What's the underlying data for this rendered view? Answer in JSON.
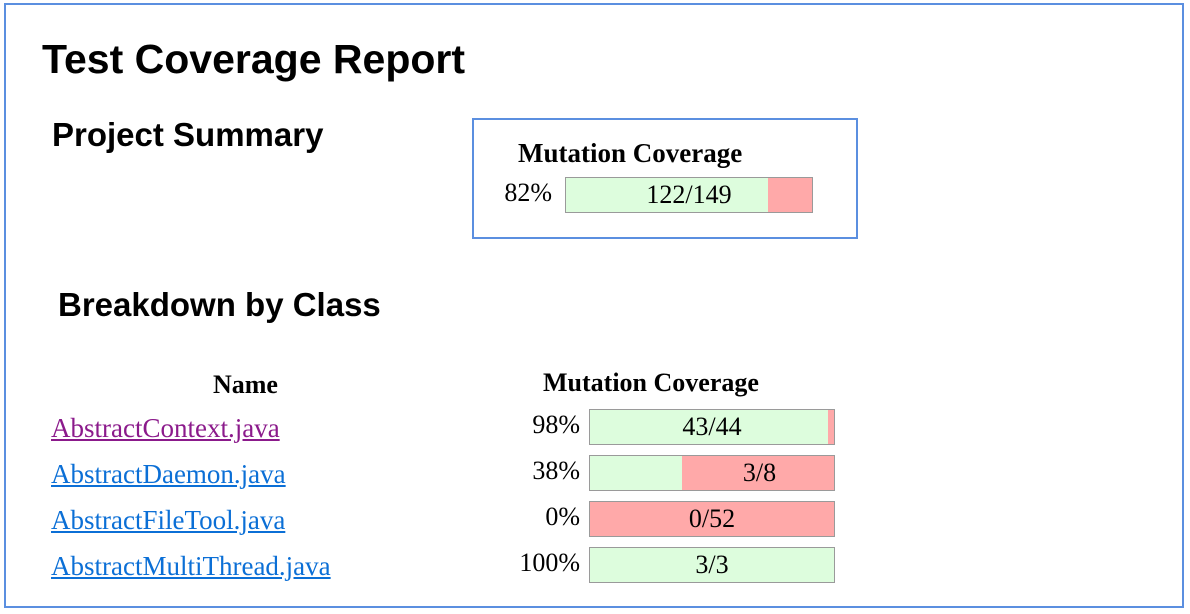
{
  "title": "Test Coverage Report",
  "project_summary": {
    "heading": "Project Summary",
    "column_label": "Mutation Coverage",
    "percent": "82%",
    "ratio": "122/149",
    "fraction": 0.82
  },
  "breakdown": {
    "heading": "Breakdown by Class",
    "columns": {
      "name": "Name",
      "coverage": "Mutation Coverage"
    },
    "rows": [
      {
        "name": "AbstractContext.java",
        "percent": "98%",
        "ratio": "43/44",
        "fraction": 0.977,
        "visited": true
      },
      {
        "name": "AbstractDaemon.java",
        "percent": "38%",
        "ratio": "3/8",
        "fraction": 0.375,
        "visited": false
      },
      {
        "name": "AbstractFileTool.java",
        "percent": "0%",
        "ratio": "0/52",
        "fraction": 0.0,
        "visited": false
      },
      {
        "name": "AbstractMultiThread.java",
        "percent": "100%",
        "ratio": "3/3",
        "fraction": 1.0,
        "visited": false
      }
    ]
  },
  "colors": {
    "frame_border": "#5b8fe0",
    "covered": "#ddfddd",
    "uncovered": "#ffa9a9",
    "link": "#0b6fd6",
    "link_visited": "#8b1a8b"
  }
}
